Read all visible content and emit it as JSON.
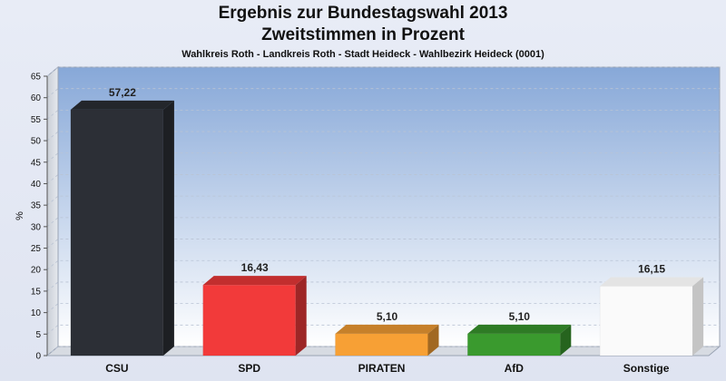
{
  "chart_data": {
    "type": "bar",
    "title": "Ergebnis zur Bundestagswahl 2013",
    "subtitle_line2": "Zweitstimmen in Prozent",
    "subtitle": "Wahlkreis Roth - Landkreis Roth - Stadt Heideck - Wahlbezirk Heideck (0001)",
    "xlabel": "",
    "ylabel": "%",
    "categories": [
      "CSU",
      "SPD",
      "PIRATEN",
      "AfD",
      "Sonstige"
    ],
    "values": [
      57.22,
      16.43,
      5.1,
      5.1,
      16.15
    ],
    "value_labels": [
      "57,22",
      "16,43",
      "5,10",
      "5,10",
      "16,15"
    ],
    "colors": [
      "#2c2f36",
      "#f23a3a",
      "#f7a035",
      "#3a9a2e",
      "#fafafa"
    ],
    "ylim": [
      0,
      65
    ],
    "yticks": [
      0,
      5,
      10,
      15,
      20,
      25,
      30,
      35,
      40,
      45,
      50,
      55,
      60,
      65
    ],
    "grid": true,
    "legend": "none"
  }
}
